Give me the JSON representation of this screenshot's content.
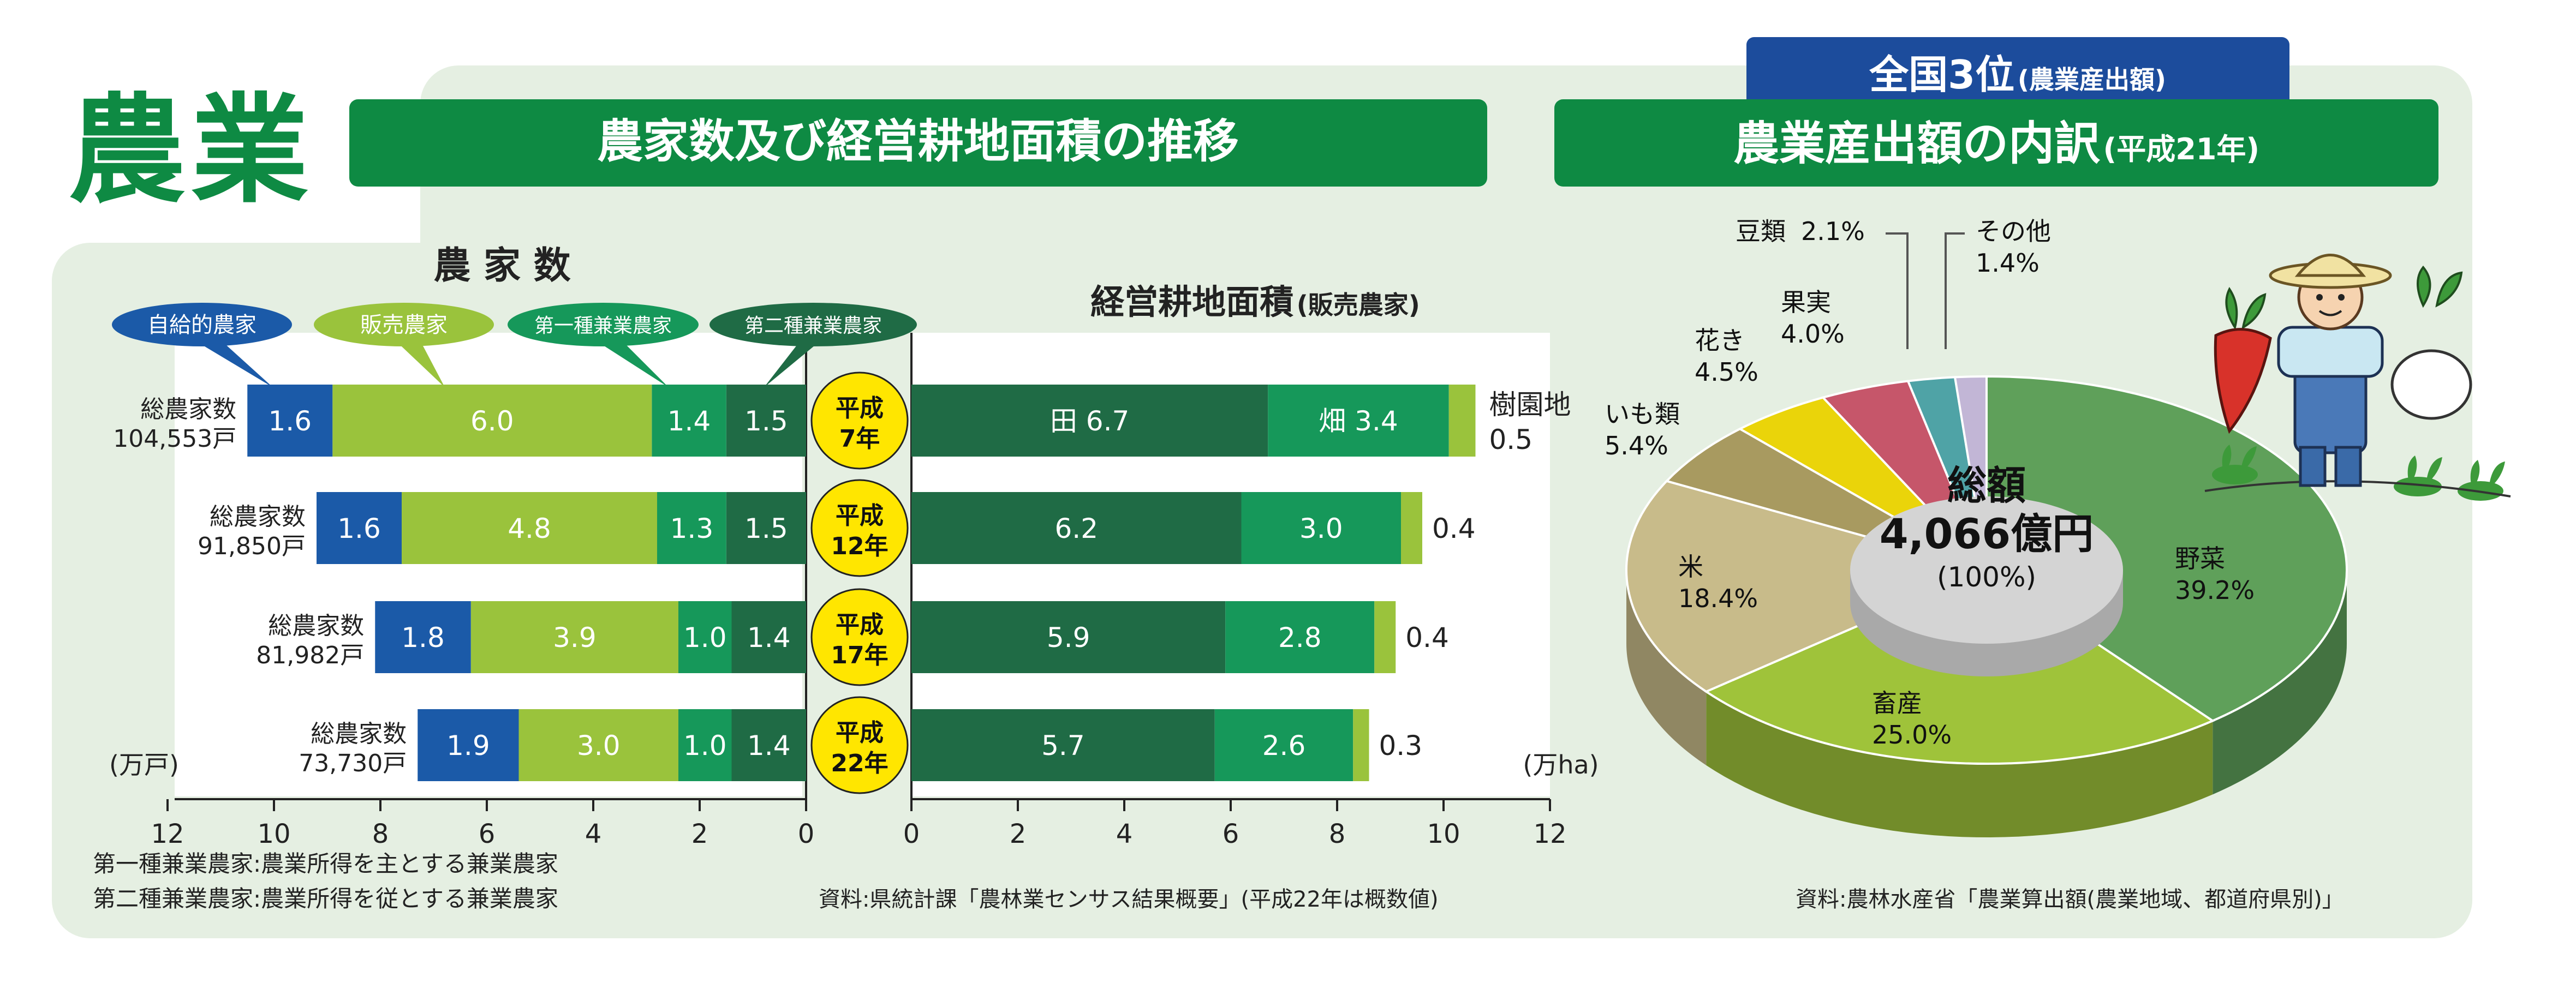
{
  "headline": "農業",
  "left_panel": {
    "title": "農家数及び経営耕地面積の推移",
    "farm_title": "農 家 数",
    "area_title_main": "経営耕地面積",
    "area_title_sub": "(販売農家)",
    "unit_left": "(万戸)",
    "unit_right": "(万ha)",
    "note_1": "第一種兼業農家:農業所得を主とする兼業農家",
    "note_2": "第二種兼業農家:農業所得を従とする兼業農家",
    "source": "資料:県統計課「農林業センサス結果概要」(平成22年は概数値)"
  },
  "right_panel": {
    "badge_main": "全国3位",
    "badge_sub": "(農業産出額)",
    "title_main": "農業産出額の内訳",
    "title_sub": "(平成21年)",
    "source": "資料:農林水産省「農業算出額(農業地域、都道府県別)」"
  },
  "colors": {
    "brand_green": "#0e8a43",
    "panel_bg": "#e5efe2",
    "self_sufficient": "#1b5aa8",
    "commercial": "#9ac33c",
    "type1": "#16985a",
    "type2": "#1f6b45",
    "paddy": "#1f6b45",
    "field": "#16985a",
    "orchard": "#9ac33c",
    "year_badge": "#ffe600",
    "badge_blue": "#1c4c9c"
  },
  "chart_data": [
    {
      "type": "bar",
      "orientation": "horizontal",
      "direction": "right-to-left",
      "title": "農 家 数",
      "xlabel": "(万戸)",
      "xlim": [
        0,
        12
      ],
      "ticks": [
        0,
        2,
        4,
        6,
        8,
        10,
        12
      ],
      "categories": [
        "平成7年",
        "平成12年",
        "平成17年",
        "平成22年"
      ],
      "category_lines": [
        [
          "平成",
          "7年"
        ],
        [
          "平成",
          "12年"
        ],
        [
          "平成",
          "17年"
        ],
        [
          "平成",
          "22年"
        ]
      ],
      "totals": [
        {
          "label": "総農家数",
          "value": "104,553戸"
        },
        {
          "label": "総農家数",
          "value": "91,850戸"
        },
        {
          "label": "総農家数",
          "value": "81,982戸"
        },
        {
          "label": "総農家数",
          "value": "73,730戸"
        }
      ],
      "series": [
        {
          "name": "第二種兼業農家",
          "color": "#1f6b45",
          "values": [
            1.5,
            1.5,
            1.4,
            1.4
          ]
        },
        {
          "name": "第一種兼業農家",
          "color": "#16985a",
          "values": [
            1.4,
            1.3,
            1.0,
            1.0
          ]
        },
        {
          "name": "販売農家",
          "color": "#9ac33c",
          "values": [
            6.0,
            4.8,
            3.9,
            3.0
          ]
        },
        {
          "name": "自給的農家",
          "color": "#1b5aa8",
          "values": [
            1.6,
            1.6,
            1.8,
            1.9
          ]
        }
      ],
      "legend": [
        "自給的農家",
        "販売農家",
        "第一種兼業農家",
        "第二種兼業農家"
      ]
    },
    {
      "type": "bar",
      "orientation": "horizontal",
      "title": "経営耕地面積(販売農家)",
      "xlabel": "(万ha)",
      "xlim": [
        0,
        12
      ],
      "ticks": [
        0,
        2,
        4,
        6,
        8,
        10,
        12
      ],
      "categories": [
        "平成7年",
        "平成12年",
        "平成17年",
        "平成22年"
      ],
      "series": [
        {
          "name": "田",
          "color": "#1f6b45",
          "values": [
            6.7,
            6.2,
            5.9,
            5.7
          ]
        },
        {
          "name": "畑",
          "color": "#16985a",
          "values": [
            3.4,
            3.0,
            2.8,
            2.6
          ]
        },
        {
          "name": "樹園地",
          "color": "#9ac33c",
          "values": [
            0.5,
            0.4,
            0.4,
            0.3
          ]
        }
      ]
    },
    {
      "type": "pie",
      "title": "農業産出額の内訳(平成21年)",
      "center_title": "総額",
      "center_value": "4,066億円",
      "center_pct": "(100%)",
      "slices": [
        {
          "name": "野菜",
          "value": 39.2,
          "label": "39.2%",
          "color": "#5fa05a"
        },
        {
          "name": "畜産",
          "value": 25.0,
          "label": "25.0%",
          "color": "#9fc33a"
        },
        {
          "name": "米",
          "value": 18.4,
          "label": "18.4%",
          "color": "#c8bb8a"
        },
        {
          "name": "いも類",
          "value": 5.4,
          "label": "5.4%",
          "color": "#a89a60"
        },
        {
          "name": "花き",
          "value": 4.5,
          "label": "4.5%",
          "color": "#ead40a"
        },
        {
          "name": "果実",
          "value": 4.0,
          "label": "4.0%",
          "color": "#c6566a"
        },
        {
          "name": "豆類",
          "value": 2.1,
          "label": "2.1%",
          "color": "#4fa3a6"
        },
        {
          "name": "その他",
          "value": 1.4,
          "label": "1.4%",
          "color": "#c2b6d6"
        }
      ]
    }
  ]
}
